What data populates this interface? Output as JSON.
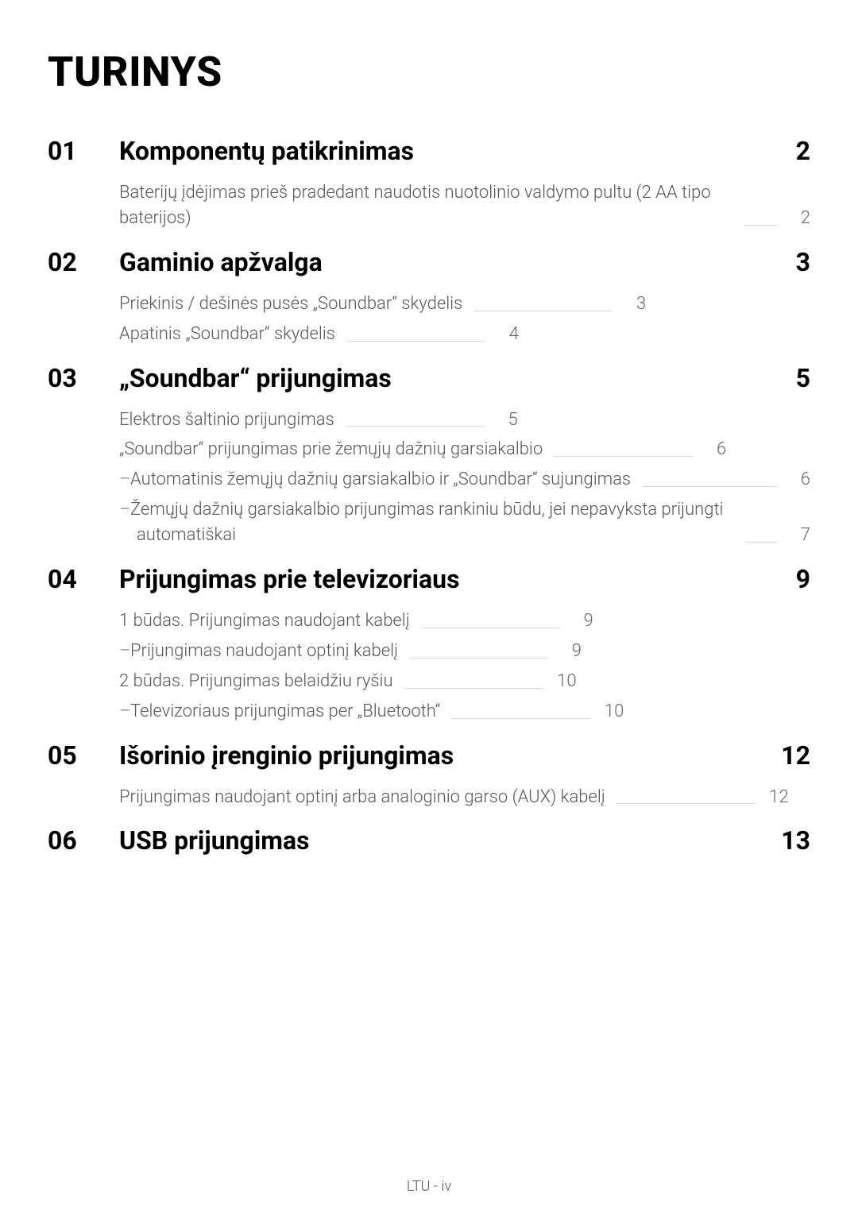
{
  "colors": {
    "text_primary": "#000000",
    "text_secondary": "#555555",
    "leader_line": "#d9d9d9",
    "background": "#ffffff"
  },
  "typography": {
    "title_fontsize_pt": 39,
    "section_fontsize_pt": 24,
    "entry_fontsize_pt": 17,
    "footer_fontsize_pt": 14,
    "entry_weight": 300,
    "section_weight": 700,
    "title_weight": 800
  },
  "title": "TURINYS",
  "footer": "LTU - iv",
  "sections": [
    {
      "num": "01",
      "title": "Komponentų patikrinimas",
      "page": "2",
      "entries": [
        {
          "text": "Baterijų įdėjimas prieš pradedant naudotis nuotolinio valdymo pultu (2 AA tipo baterijos)",
          "page": "2",
          "indent": 0
        }
      ]
    },
    {
      "num": "02",
      "title": "Gaminio apžvalga",
      "page": "3",
      "entries": [
        {
          "text": "Priekinis / dešinės pusės „Soundbar“ skydelis",
          "page": "3",
          "indent": 0
        },
        {
          "text": "Apatinis „Soundbar“ skydelis",
          "page": "4",
          "indent": 0
        }
      ]
    },
    {
      "num": "03",
      "title": "„Soundbar“ prijungimas",
      "page": "5",
      "entries": [
        {
          "text": "Elektros šaltinio prijungimas",
          "page": "5",
          "indent": 0
        },
        {
          "text": "„Soundbar“ prijungimas prie žemųjų dažnių garsiakalbio",
          "page": "6",
          "indent": 0
        },
        {
          "text": "Automatinis žemųjų dažnių garsiakalbio ir „Soundbar“ sujungimas",
          "page": "6",
          "indent": 1,
          "dash": true
        },
        {
          "text": "Žemųjų dažnių garsiakalbio prijungimas rankiniu būdu, jei nepavyksta prijungti automatiškai",
          "page": "7",
          "indent": 1,
          "dash": true
        }
      ]
    },
    {
      "num": "04",
      "title": "Prijungimas prie televizoriaus",
      "page": "9",
      "entries": [
        {
          "text": "1 būdas. Prijungimas naudojant kabelį",
          "page": "9",
          "indent": 0
        },
        {
          "text": "Prijungimas naudojant optinį kabelį",
          "page": "9",
          "indent": 1,
          "dash": true
        },
        {
          "text": "2 būdas. Prijungimas belaidžiu ryšiu",
          "page": "10",
          "indent": 0
        },
        {
          "text": "Televizoriaus prijungimas per „Bluetooth“",
          "page": "10",
          "indent": 1,
          "dash": true
        }
      ]
    },
    {
      "num": "05",
      "title": "Išorinio įrenginio prijungimas",
      "page": "12",
      "entries": [
        {
          "text": "Prijungimas naudojant optinį arba analoginio garso (AUX) kabelį",
          "page": "12",
          "indent": 0
        }
      ]
    },
    {
      "num": "06",
      "title": "USB prijungimas",
      "page": "13",
      "entries": []
    }
  ]
}
